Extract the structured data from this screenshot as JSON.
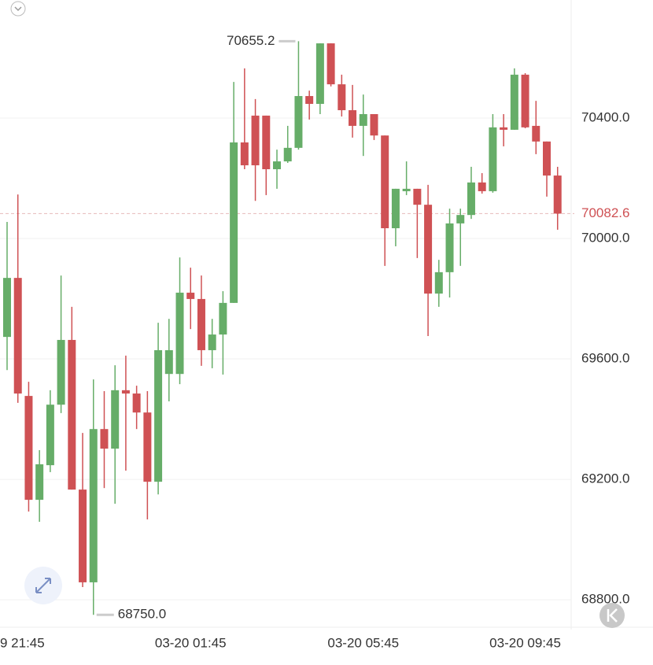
{
  "chart_data": {
    "type": "candlestick",
    "categories": [
      null,
      "9 21:45",
      null,
      null,
      null,
      null,
      null,
      null,
      null,
      null,
      null,
      null,
      null,
      null,
      null,
      null,
      null,
      "03-20 01:45",
      null,
      null,
      null,
      null,
      null,
      null,
      null,
      null,
      null,
      null,
      null,
      null,
      null,
      null,
      null,
      "03-20 05:45",
      null,
      null,
      null,
      null,
      null,
      null,
      null,
      null,
      null,
      null,
      null,
      null,
      null,
      null,
      "03-20 09:45",
      null,
      null,
      null
    ],
    "open": [
      69673,
      69869,
      69477,
      69132,
      69247,
      69448,
      69663,
      69166,
      68858,
      69367,
      69302,
      69496,
      69485,
      69422,
      69192,
      69550,
      69550,
      69820,
      69799,
      69629,
      69681,
      69786,
      70319,
      70408,
      70408,
      70230,
      70256,
      70301,
      70473,
      70447,
      70648,
      70512,
      70426,
      70374,
      70413,
      70342,
      70034,
      70157,
      70165,
      70112,
      69817,
      69888,
      70050,
      70078,
      70186,
      70157,
      70369,
      70361,
      70544,
      70374,
      70322,
      70209
    ],
    "high": [
      70055,
      70146,
      69524,
      69297,
      69496,
      69877,
      69773,
      69354,
      69532,
      69493,
      69579,
      69611,
      69511,
      69493,
      69720,
      69733,
      69937,
      69903,
      69877,
      69733,
      69825,
      70520,
      70565,
      70463,
      70408,
      70295,
      70374,
      70655.2,
      70491,
      70648,
      70648,
      70544,
      70510,
      70478,
      70413,
      70342,
      70165,
      70256,
      70165,
      70178,
      69929,
      70099,
      70099,
      70238,
      70217,
      70413,
      70413,
      70565,
      70549,
      70457,
      70322,
      70238
    ],
    "low": [
      69563,
      69454,
      69093,
      69059,
      69224,
      69420,
      69166,
      68842,
      68750,
      69171,
      69119,
      69229,
      69367,
      69067,
      69150,
      69459,
      69516,
      69699,
      69577,
      69569,
      69548,
      69786,
      70230,
      70125,
      70144,
      70165,
      70251,
      70295,
      70395,
      70413,
      70505,
      70405,
      70335,
      70274,
      70327,
      69909,
      69974,
      70144,
      69935,
      69676,
      69773,
      69804,
      69909,
      70065,
      70149,
      70152,
      70306,
      70361,
      70366,
      70280,
      70139,
      70029
    ],
    "close": [
      69869,
      69485,
      69132,
      69250,
      69448,
      69663,
      69166,
      68858,
      69367,
      69302,
      69496,
      69485,
      69422,
      69192,
      69629,
      69629,
      69820,
      69799,
      69629,
      69681,
      69786,
      70319,
      70243,
      70243,
      70230,
      70256,
      70301,
      70473,
      70447,
      70648,
      70512,
      70426,
      70374,
      70413,
      70342,
      70034,
      70165,
      70165,
      70112,
      69817,
      69888,
      70050,
      70078,
      70186,
      70157,
      70369,
      70361,
      70544,
      70369,
      70322,
      70209,
      70082.6
    ],
    "up_color": "#66ad68",
    "down_color": "#cf5154",
    "ylim": [
      68701,
      70792
    ],
    "yticks": [
      {
        "value": 68800,
        "label": "68800.0"
      },
      {
        "value": 69200,
        "label": "69200.0"
      },
      {
        "value": 69600,
        "label": "69600.0"
      },
      {
        "value": 70000,
        "label": "70000.0"
      },
      {
        "value": 70400,
        "label": "70400.0"
      }
    ],
    "grid": true,
    "high_marker": 70655.2,
    "low_marker": {
      "value": 68750,
      "label": "68750.0"
    },
    "last_price": 70082.6
  }
}
